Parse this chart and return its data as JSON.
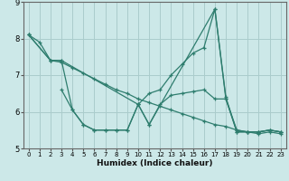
{
  "xlabel": "Humidex (Indice chaleur)",
  "background_color": "#cce8e8",
  "grid_color": "#aacccc",
  "line_color": "#2e7d6e",
  "xlim": [
    -0.5,
    23.5
  ],
  "ylim": [
    5,
    9
  ],
  "yticks": [
    5,
    6,
    7,
    8,
    9
  ],
  "xticks": [
    0,
    1,
    2,
    3,
    4,
    5,
    6,
    7,
    8,
    9,
    10,
    11,
    12,
    13,
    14,
    15,
    16,
    17,
    18,
    19,
    20,
    21,
    22,
    23
  ],
  "series": [
    {
      "x": [
        0,
        1,
        2,
        3,
        10,
        11,
        12,
        13,
        14,
        15,
        16,
        17,
        18,
        19,
        20,
        21,
        22,
        23
      ],
      "y": [
        8.1,
        7.9,
        7.4,
        7.4,
        6.2,
        6.5,
        6.6,
        7.0,
        7.3,
        7.6,
        7.75,
        8.8,
        6.4,
        5.45,
        5.45,
        5.45,
        5.5,
        5.45
      ]
    },
    {
      "x": [
        0,
        2,
        3,
        4,
        5,
        6,
        7,
        8,
        9,
        10,
        11,
        17,
        18,
        19,
        20,
        21,
        22,
        23
      ],
      "y": [
        8.1,
        7.4,
        7.4,
        6.05,
        5.65,
        5.5,
        5.5,
        5.5,
        5.5,
        6.2,
        5.65,
        8.8,
        6.35,
        5.45,
        5.45,
        5.45,
        5.5,
        5.45
      ]
    },
    {
      "x": [
        0,
        2,
        3,
        4,
        5,
        6,
        7,
        8,
        9,
        10,
        11,
        12,
        13,
        14,
        15,
        16,
        17,
        18,
        19,
        20,
        21,
        22,
        23
      ],
      "y": [
        8.1,
        7.4,
        7.35,
        7.2,
        7.05,
        6.9,
        6.75,
        6.6,
        6.5,
        6.35,
        6.25,
        6.15,
        6.05,
        5.95,
        5.85,
        5.75,
        5.65,
        5.6,
        5.5,
        5.45,
        5.4,
        5.45,
        5.4
      ]
    },
    {
      "x": [
        3,
        4,
        5,
        6,
        7,
        8,
        9,
        10,
        11,
        12,
        13,
        14,
        15,
        16,
        17,
        18,
        19,
        20,
        21,
        22,
        23
      ],
      "y": [
        6.6,
        6.05,
        5.65,
        5.5,
        5.5,
        5.5,
        5.5,
        6.2,
        5.65,
        6.2,
        6.45,
        6.5,
        6.55,
        6.6,
        6.35,
        6.35,
        5.5,
        5.45,
        5.45,
        5.5,
        5.45
      ]
    }
  ]
}
